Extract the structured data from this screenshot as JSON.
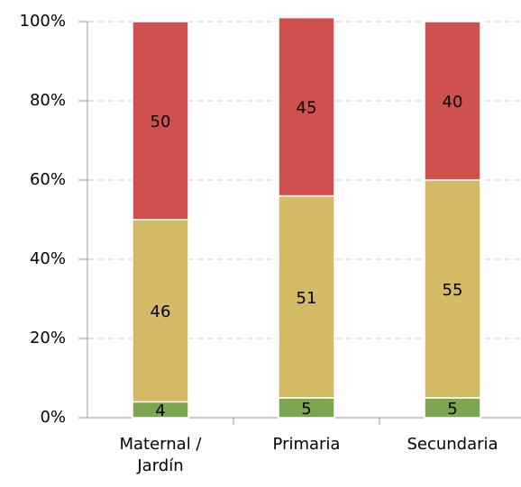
{
  "chart_data": {
    "type": "stacked_bar",
    "categories": [
      "Maternal / Jardín",
      "Primaria",
      "Secundaria"
    ],
    "series": [
      {
        "color": "#7ba64f",
        "values": [
          4,
          5,
          5
        ]
      },
      {
        "color": "#d4b966",
        "values": [
          46,
          51,
          55
        ]
      },
      {
        "color": "#d0504e",
        "values": [
          50,
          45,
          40
        ]
      }
    ],
    "ylim": [
      0,
      100
    ],
    "yticks": [
      {
        "value": 0,
        "label": "0%"
      },
      {
        "value": 20,
        "label": "20%"
      },
      {
        "value": 40,
        "label": "40%"
      },
      {
        "value": 60,
        "label": "60%"
      },
      {
        "value": 80,
        "label": "80%"
      },
      {
        "value": 100,
        "label": "100%"
      }
    ],
    "grid": true
  }
}
